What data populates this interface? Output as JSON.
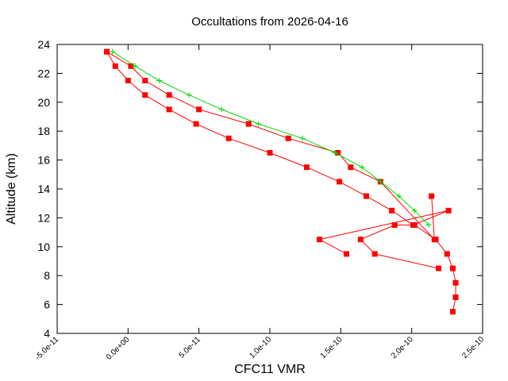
{
  "chart_data": {
    "type": "line",
    "title": "Occultations from 2026-04-16",
    "xlabel": "CFC11 VMR",
    "ylabel": "Altitude (km)",
    "xlim": [
      -5e-11,
      2.5e-10
    ],
    "ylim": [
      4,
      24
    ],
    "x_ticks": [
      -5e-11,
      0,
      5e-11,
      1e-10,
      1.5e-10,
      2e-10,
      2.5e-10
    ],
    "x_tick_labels": [
      "-5.0e-11",
      "0.0e+00",
      "5.0e-11",
      "1.0e-10",
      "1.5e-10",
      "2.0e-10",
      "2.5e-10"
    ],
    "y_ticks": [
      4,
      6,
      8,
      10,
      12,
      14,
      16,
      18,
      20,
      22,
      24
    ],
    "y_tick_labels": [
      "4",
      "6",
      "8",
      "10",
      "12",
      "14",
      "16",
      "18",
      "20",
      "22",
      "24"
    ],
    "grid": false,
    "series": [
      {
        "color": "#ff0000",
        "marker": "square",
        "points": [
          [
            2.29e-10,
            5.5
          ],
          [
            2.31e-10,
            6.5
          ],
          [
            2.31e-10,
            7.5
          ],
          [
            2.29e-10,
            8.5
          ],
          [
            2.25e-10,
            9.5
          ],
          [
            2.17e-10,
            10.5
          ],
          [
            2.02e-10,
            11.5
          ],
          [
            1.88e-10,
            11.5
          ],
          [
            1.64e-10,
            10.5
          ],
          [
            1.74e-10,
            9.5
          ],
          [
            2.19e-10,
            8.5
          ]
        ]
      },
      {
        "color": "#ff0000",
        "marker": "square",
        "points": [
          [
            1.54e-10,
            9.5
          ],
          [
            1.35e-10,
            10.5
          ],
          [
            2.26e-10,
            12.5
          ],
          [
            2.01e-10,
            11.5
          ],
          [
            1.86e-10,
            12.5
          ],
          [
            1.68e-10,
            13.5
          ],
          [
            1.49e-10,
            14.5
          ],
          [
            1.26e-10,
            15.5
          ],
          [
            1e-10,
            16.5
          ],
          [
            7.1e-11,
            17.5
          ],
          [
            4.8e-11,
            18.5
          ],
          [
            2.9e-11,
            19.5
          ],
          [
            1.2e-11,
            20.5
          ],
          [
            0.0,
            21.5
          ],
          [
            -9e-12,
            22.5
          ],
          [
            -1.5e-11,
            23.5
          ]
        ]
      },
      {
        "color": "#ff0000",
        "marker": "square",
        "points": [
          [
            2.14e-10,
            13.5
          ],
          [
            2.16e-10,
            10.5
          ],
          [
            1.78e-10,
            14.5
          ],
          [
            1.57e-10,
            15.5
          ],
          [
            1.48e-10,
            16.5
          ],
          [
            1.13e-10,
            17.5
          ],
          [
            8.5e-11,
            18.5
          ],
          [
            5e-11,
            19.5
          ],
          [
            2.9e-11,
            20.5
          ],
          [
            1.2e-11,
            21.5
          ],
          [
            2e-12,
            22.5
          ],
          [
            -1.5e-11,
            23.5
          ]
        ]
      },
      {
        "color": "#00dd00",
        "marker": "plus",
        "points": [
          [
            2.12e-10,
            11.5
          ],
          [
            2.02e-10,
            12.5
          ],
          [
            1.91e-10,
            13.5
          ],
          [
            1.78e-10,
            14.5
          ],
          [
            1.65e-10,
            15.5
          ],
          [
            1.46e-10,
            16.5
          ],
          [
            1.23e-10,
            17.5
          ],
          [
            9.2e-11,
            18.5
          ],
          [
            6.6e-11,
            19.5
          ],
          [
            4.3e-11,
            20.5
          ],
          [
            2.2e-11,
            21.5
          ],
          [
            5e-12,
            22.5
          ],
          [
            -1.1e-11,
            23.5
          ]
        ]
      }
    ]
  }
}
